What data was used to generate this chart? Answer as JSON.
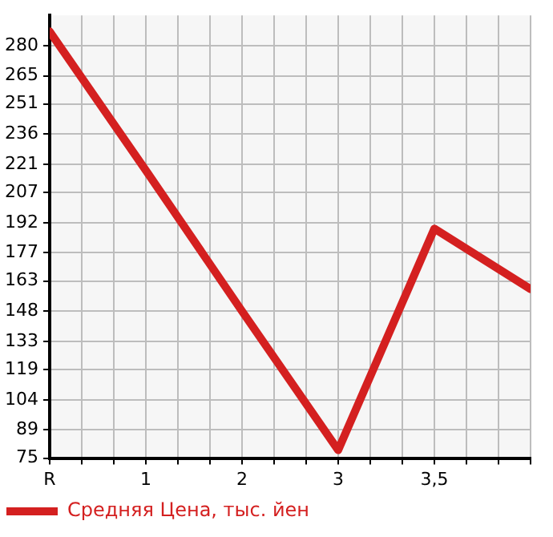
{
  "chart_data": {
    "type": "line",
    "categories": [
      "R",
      "1",
      "2",
      "3",
      "3,5",
      null
    ],
    "series": [
      {
        "name": "Средняя Цена, тыс. йен",
        "color": "#d42020",
        "values": [
          287,
          218,
          148,
          79,
          189,
          159
        ]
      }
    ],
    "ylim": [
      75,
      295
    ],
    "yticks": [
      75,
      89,
      104,
      119,
      133,
      148,
      163,
      177,
      192,
      207,
      221,
      236,
      251,
      265,
      280
    ],
    "grid": true,
    "legend": "bottom left",
    "marker": "none",
    "line_style": "solid"
  }
}
